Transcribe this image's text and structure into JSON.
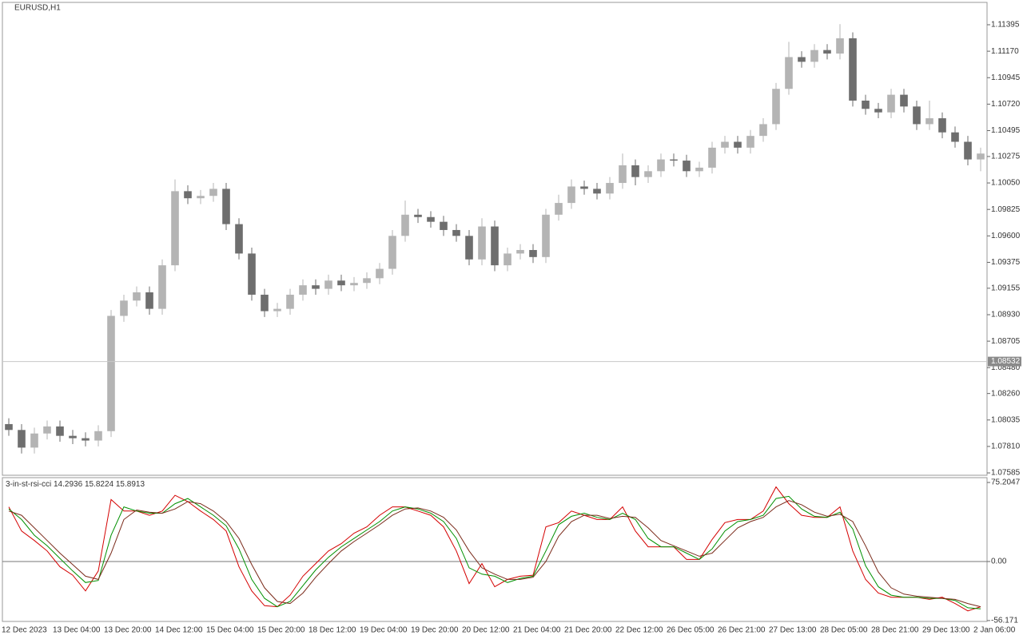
{
  "chart_data": [
    {
      "type": "candlestick",
      "title": "EURUSD,H1",
      "up_color": "#b4b4b4",
      "down_color": "#6e6e6e",
      "candles": {
        "open": [
          1.08,
          1.0795,
          1.078,
          1.0792,
          1.0798,
          1.079,
          1.0788,
          1.0786,
          1.0794,
          1.0892,
          1.0905,
          1.0912,
          1.0898,
          1.0935,
          1.0998,
          1.0992,
          1.0994,
          1.1,
          1.097,
          1.0945,
          1.091,
          1.0896,
          1.0898,
          1.091,
          1.0918,
          1.0915,
          1.0922,
          1.0918,
          1.092,
          1.0924,
          1.0932,
          1.096,
          1.0978,
          1.0976,
          1.0972,
          1.0965,
          1.096,
          1.094,
          1.0968,
          1.0935,
          1.0945,
          1.0948,
          1.0942,
          1.0978,
          1.0988,
          1.1002,
          1.1,
          1.0996,
          1.1005,
          1.102,
          1.101,
          1.1015,
          1.1025,
          1.1024,
          1.1015,
          1.1018,
          1.1035,
          1.104,
          1.1035,
          1.1045,
          1.1055,
          1.1085,
          1.1112,
          1.1108,
          1.1118,
          1.1115,
          1.1128,
          1.1075,
          1.1068,
          1.1065,
          1.108,
          1.107,
          1.1055,
          1.106,
          1.1048,
          1.104,
          1.1025
        ],
        "high": [
          1.0805,
          1.08,
          1.0797,
          1.0803,
          1.0803,
          1.0795,
          1.0793,
          1.0799,
          1.0897,
          1.091,
          1.0917,
          1.0917,
          1.094,
          1.1008,
          1.1003,
          1.0999,
          1.1005,
          1.1005,
          1.0975,
          1.095,
          1.0915,
          1.0903,
          1.0915,
          1.0923,
          1.0923,
          1.0927,
          1.0927,
          1.0925,
          1.0929,
          1.0937,
          1.0965,
          1.099,
          1.0983,
          1.0981,
          1.0977,
          1.097,
          1.0965,
          1.0975,
          1.0973,
          1.095,
          1.0953,
          1.0953,
          1.0983,
          1.0995,
          1.1008,
          1.1007,
          1.1005,
          1.101,
          1.103,
          1.1025,
          1.102,
          1.103,
          1.103,
          1.1029,
          1.1023,
          1.104,
          1.1045,
          1.1045,
          1.105,
          1.106,
          1.109,
          1.1125,
          1.1117,
          1.1123,
          1.1123,
          1.114,
          1.1133,
          1.108,
          1.1073,
          1.1085,
          1.1085,
          1.1075,
          1.1075,
          1.1065,
          1.1053,
          1.1045,
          1.1035
        ],
        "low": [
          1.079,
          1.0775,
          1.0775,
          1.0787,
          1.0785,
          1.0783,
          1.0781,
          1.0781,
          1.0789,
          1.0887,
          1.09,
          1.0893,
          1.0893,
          1.093,
          1.0987,
          1.0987,
          1.0989,
          1.0965,
          1.094,
          1.0905,
          1.0891,
          1.0891,
          1.0893,
          1.0905,
          1.091,
          1.091,
          1.0913,
          1.0913,
          1.0915,
          1.0919,
          1.0927,
          1.0955,
          1.0971,
          1.0967,
          1.096,
          1.0955,
          1.0935,
          1.0935,
          1.093,
          1.093,
          1.094,
          1.0937,
          1.0937,
          1.0973,
          1.0983,
          1.0995,
          1.0991,
          1.0991,
          1.1,
          1.1003,
          1.1005,
          1.101,
          1.1019,
          1.101,
          1.101,
          1.1013,
          1.103,
          1.103,
          1.103,
          1.104,
          1.105,
          1.108,
          1.1103,
          1.1103,
          1.111,
          1.111,
          1.107,
          1.1063,
          1.106,
          1.106,
          1.1065,
          1.105,
          1.105,
          1.1043,
          1.1035,
          1.102,
          1.1015
        ],
        "close": [
          1.0795,
          1.078,
          1.0792,
          1.0798,
          1.079,
          1.0788,
          1.0786,
          1.0794,
          1.0892,
          1.0905,
          1.0912,
          1.0898,
          1.0935,
          1.0998,
          1.0992,
          1.0994,
          1.1,
          1.097,
          1.0945,
          1.091,
          1.0896,
          1.0898,
          1.091,
          1.0918,
          1.0915,
          1.0922,
          1.0918,
          1.092,
          1.0924,
          1.0932,
          1.096,
          1.0978,
          1.0976,
          1.0972,
          1.0965,
          1.096,
          1.094,
          1.0968,
          1.0935,
          1.0945,
          1.0948,
          1.0942,
          1.0978,
          1.0988,
          1.1002,
          1.1,
          1.0996,
          1.1005,
          1.102,
          1.101,
          1.1015,
          1.1025,
          1.1024,
          1.1015,
          1.1018,
          1.1035,
          1.104,
          1.1035,
          1.1045,
          1.1055,
          1.1085,
          1.1112,
          1.1108,
          1.1118,
          1.1115,
          1.1128,
          1.1075,
          1.1068,
          1.1065,
          1.108,
          1.107,
          1.1055,
          1.106,
          1.1048,
          1.104,
          1.1025,
          1.103
        ]
      },
      "ylim": [
        1.07565,
        1.11585
      ],
      "yticks": [
        1.11395,
        {
          "value": 1.1117,
          "label": "1.11170"
        },
        1.10945,
        {
          "value": 1.1072,
          "label": "1.10720"
        },
        1.10495,
        1.10275,
        {
          "value": 1.1005,
          "label": "1.10050"
        },
        1.09825,
        {
          "value": 1.096,
          "label": "1.09600"
        },
        1.09375,
        1.09155,
        {
          "value": 1.0893,
          "label": "1.08930"
        },
        1.08705,
        {
          "value": 1.0848,
          "label": "1.08480"
        },
        {
          "value": 1.0826,
          "label": "1.08260"
        },
        1.08035,
        {
          "value": 1.0781,
          "label": "1.07810"
        },
        1.07585
      ],
      "price_line": 1.08532,
      "x_labels": [
        "12 Dec 2023",
        "13 Dec 04:00",
        "13 Dec 20:00",
        "14 Dec 12:00",
        "15 Dec 04:00",
        "15 Dec 20:00",
        "18 Dec 12:00",
        "19 Dec 04:00",
        "19 Dec 20:00",
        "20 Dec 12:00",
        "21 Dec 04:00",
        "21 Dec 20:00",
        "22 Dec 12:00",
        "26 Dec 05:00",
        "26 Dec 21:00",
        "27 Dec 13:00",
        "28 Dec 05:00",
        "28 Dec 21:00",
        "29 Dec 13:00",
        "2 Jan 06:00"
      ]
    },
    {
      "type": "line",
      "title": "3-in-st-rsi-cci",
      "indicator_values": [
        14.2936,
        15.8224,
        15.8913
      ],
      "ylim": [
        -57,
        79.8
      ],
      "yticks": [
        75.2047,
        {
          "value": 0,
          "label": "0.00"
        },
        -56.171
      ],
      "zero_line": true,
      "series": [
        {
          "color": "#d40000",
          "values": [
            52,
            29,
            20,
            10,
            -5,
            -13,
            -28,
            -9,
            59,
            48,
            48,
            44,
            48,
            63,
            57,
            48,
            40,
            29,
            -5,
            -28,
            -42,
            -43,
            -32,
            -14,
            -2,
            10,
            17,
            27,
            33,
            44,
            52,
            52,
            48,
            44,
            33,
            10,
            -21,
            -2,
            -24,
            -17,
            -14,
            -13,
            33,
            37,
            48,
            44,
            40,
            40,
            52,
            29,
            14,
            14,
            14,
            2,
            2,
            21,
            37,
            40,
            40,
            48,
            71,
            55,
            44,
            42,
            42,
            52,
            10,
            -17,
            -30,
            -34,
            -34,
            -34,
            -36,
            -34,
            -40,
            -47,
            -43
          ]
        },
        {
          "color": "#009000",
          "values": [
            50,
            40,
            25,
            15,
            3,
            -9,
            -20,
            -18,
            25,
            52,
            48,
            46,
            46,
            55,
            60,
            52,
            44,
            34,
            12,
            -17,
            -35,
            -43,
            -38,
            -23,
            -8,
            4,
            14,
            22,
            30,
            38,
            48,
            52,
            50,
            46,
            38,
            22,
            -6,
            -12,
            -14,
            -20,
            -16,
            -14,
            10,
            35,
            43,
            46,
            42,
            40,
            46,
            40,
            22,
            14,
            14,
            8,
            2,
            12,
            29,
            38,
            40,
            44,
            60,
            62,
            50,
            43,
            42,
            47,
            31,
            -4,
            -24,
            -32,
            -34,
            -34,
            -35,
            -35,
            -37,
            -44,
            -45
          ]
        },
        {
          "color": "#7a2a1a",
          "values": [
            48,
            44,
            32,
            20,
            8,
            -3,
            -14,
            -17,
            8,
            40,
            49,
            47,
            46,
            50,
            57,
            55,
            48,
            38,
            22,
            -3,
            -25,
            -38,
            -40,
            -30,
            -15,
            -2,
            10,
            19,
            27,
            35,
            44,
            50,
            51,
            48,
            42,
            30,
            10,
            -6,
            -12,
            -17,
            -17,
            -15,
            0,
            24,
            38,
            44,
            44,
            41,
            43,
            42,
            32,
            20,
            15,
            10,
            5,
            8,
            20,
            32,
            38,
            42,
            52,
            58,
            54,
            47,
            43,
            45,
            38,
            15,
            -10,
            -25,
            -31,
            -33,
            -34,
            -35,
            -36,
            -40,
            -43
          ]
        }
      ]
    }
  ]
}
